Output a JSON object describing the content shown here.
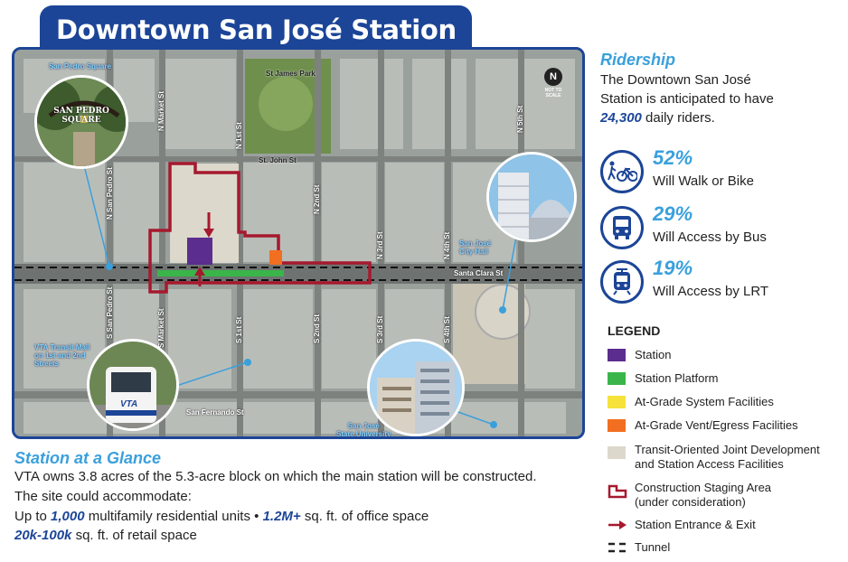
{
  "title": "Downtown San José Station",
  "map": {
    "streets": {
      "st_james_park": "St James Park",
      "st_john_st": "St. John St",
      "santa_clara_st": "Santa Clara St",
      "san_fernando_st": "San Fernando St",
      "n_san_pedro_st": "N San Pedro St",
      "n_market_st": "N Market St",
      "n_1st_st": "N 1st St",
      "n_2nd_st": "N 2nd St",
      "n_3rd_st": "N 3rd St",
      "n_4th_st": "N 4th St",
      "n_5th_st": "N 5th St",
      "s_san_pedro_st": "S San Pedro St",
      "s_market_st": "S Market St",
      "s_1st_st": "S 1st St",
      "s_2nd_st": "S 2nd St",
      "s_3rd_st": "S 3rd St",
      "s_4th_st": "S 4th St"
    },
    "places": {
      "san_pedro_square": "San Pedro Square",
      "san_jose_city_hall_1": "San José",
      "san_jose_city_hall_2": "City Hall",
      "vta_transit_mall_1": "VTA Transit Mall",
      "vta_transit_mall_2": "on 1st and 2nd",
      "vta_transit_mall_3": "Streets",
      "sjsu_1": "San José",
      "sjsu_2": "State University"
    },
    "photo_sign_1": "SAN PEDRO",
    "photo_sign_2": "SQUARE",
    "train_logo": "VTA",
    "compass_letter": "N",
    "compass_note": "NOT TO SCALE"
  },
  "ridership": {
    "heading": "Ridership",
    "text_1": "The Downtown San José",
    "text_2": "Station is anticipated to have",
    "riders_value": "24,300",
    "riders_suffix": " daily riders.",
    "stats": [
      {
        "percent": "52%",
        "label": "Will Walk or Bike",
        "icon": "walk-bike-icon"
      },
      {
        "percent": "29%",
        "label": "Will Access by Bus",
        "icon": "bus-icon"
      },
      {
        "percent": "19%",
        "label": "Will Access by LRT",
        "icon": "lrt-icon"
      }
    ]
  },
  "legend": {
    "heading": "LEGEND",
    "items": [
      {
        "label": "Station",
        "color": "#5b2d8e"
      },
      {
        "label": "Station Platform",
        "color": "#3ab54a"
      },
      {
        "label": "At-Grade System Facilities",
        "color": "#f7e23b"
      },
      {
        "label": "At-Grade Vent/Egress Facilities",
        "color": "#f26f21"
      },
      {
        "label_1": "Transit-Oriented Joint Development",
        "label_2": "and Station Access Facilities",
        "color": "#ddd8cc"
      },
      {
        "label_1": "Construction Staging Area",
        "label_2": "(under consideration)",
        "color": "#a6192e"
      },
      {
        "label": "Station Entrance & Exit",
        "color": "#a6192e"
      },
      {
        "label": "Tunnel",
        "color": "#222222"
      }
    ]
  },
  "glance": {
    "heading": "Station at a Glance",
    "line_1": "VTA owns 3.8 acres of the 5.3-acre block on which the main station will be constructed.",
    "line_2": "The site could accommodate:",
    "line_3_pre": "Up to ",
    "units_value": "1,000",
    "line_3_mid": " multifamily residential units • ",
    "office_value": "1.2M+",
    "line_3_post": " sq. ft. of office space",
    "retail_value": "20k-100k",
    "line_4_post": " sq. ft. of retail space"
  }
}
